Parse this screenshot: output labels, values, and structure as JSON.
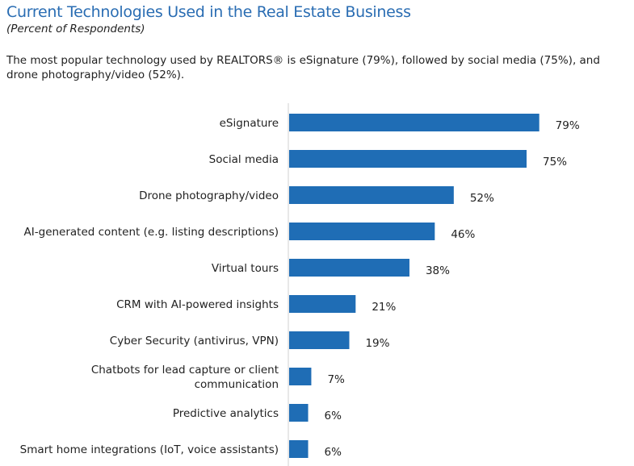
{
  "title": "Current Technologies Used in the Real Estate Business",
  "subtitle": "(Percent of Respondents)",
  "description": "The most popular technology used by REALTORS® is eSignature (79%), followed by social media (75%), and drone photography/video (52%).",
  "colors": {
    "title": "#2a6db3",
    "bar": "#1f6db5",
    "axis": "#d0d0d0"
  },
  "chart_data": {
    "type": "bar",
    "orientation": "horizontal",
    "title": "Current Technologies Used in the Real Estate Business",
    "subtitle": "(Percent of Respondents)",
    "categories": [
      "eSignature",
      "Social media",
      "Drone photography/video",
      "AI-generated content (e.g. listing descriptions)",
      "Virtual tours",
      "CRM with AI-powered insights",
      "Cyber Security (antivirus, VPN)",
      "Chatbots for lead capture or client communication",
      "Predictive analytics",
      "Smart home integrations (IoT, voice assistants)"
    ],
    "values": [
      79,
      75,
      52,
      46,
      38,
      21,
      19,
      7,
      6,
      6
    ],
    "data_labels": [
      "79%",
      "75%",
      "52%",
      "46%",
      "38%",
      "21%",
      "19%",
      "7%",
      "6%",
      "6%"
    ],
    "unit": "%",
    "xlim": [
      0,
      100
    ],
    "grid": false,
    "legend": "none"
  }
}
